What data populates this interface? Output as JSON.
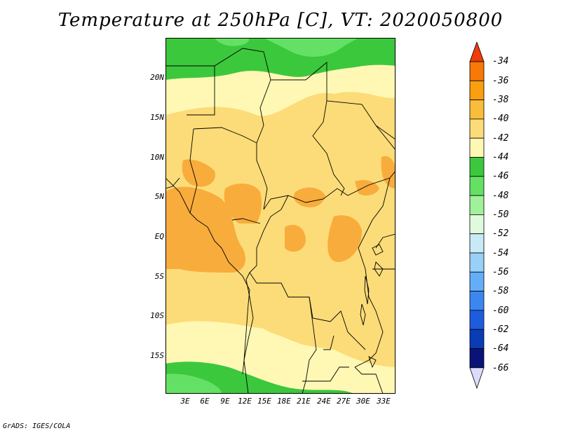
{
  "title": "Temperature at 250hPa [C], VT: 2020050800",
  "credit": "GrADS: IGES/COLA",
  "latitude_ticks": [
    "20N",
    "15N",
    "10N",
    "5N",
    "EQ",
    "5S",
    "10S",
    "15S"
  ],
  "longitude_ticks": [
    "3E",
    "6E",
    "9E",
    "12E",
    "15E",
    "18E",
    "21E",
    "24E",
    "27E",
    "30E",
    "33E"
  ],
  "colorbar": {
    "labels": [
      "-34",
      "-36",
      "-38",
      "-40",
      "-42",
      "-44",
      "-46",
      "-48",
      "-50",
      "-52",
      "-54",
      "-56",
      "-58",
      "-60",
      "-62",
      "-64",
      "-66"
    ],
    "colors": [
      "#f03c0a",
      "#f87808",
      "#f8a010",
      "#f8bd3c",
      "#fcdc78",
      "#fff8b4",
      "#3cc83c",
      "#64e164",
      "#a0f09c",
      "#e0fadc",
      "#c8eaf8",
      "#98d0f8",
      "#64aef8",
      "#3c86f0",
      "#1e5cde",
      "#0a3cb4",
      "#0a1478",
      "#dcdcfa"
    ]
  },
  "map_colors": {
    "c36": "#f87808",
    "c38": "#f8ac3c",
    "c40": "#fcdc78",
    "c42": "#fff8b4",
    "c44": "#3cc83c",
    "c46": "#64e164",
    "c48": "#a0f09c"
  }
}
